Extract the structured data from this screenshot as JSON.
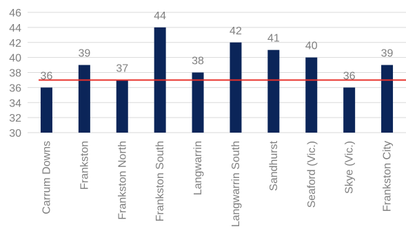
{
  "chart_data": {
    "type": "bar",
    "categories": [
      "Carrum Downs",
      "Frankston",
      "Frankston North",
      "Frankston South",
      "Langwarrin",
      "Langwarrin South",
      "Sandhurst",
      "Seaford (Vic.)",
      "Skye (Vic.)",
      "Frankston City"
    ],
    "values": [
      36,
      39,
      37,
      44,
      38,
      42,
      41,
      40,
      36,
      39
    ],
    "data_labels": [
      "36",
      "39",
      "37",
      "44",
      "38",
      "42",
      "41",
      "40",
      "36",
      "39"
    ],
    "ylim": [
      30,
      46
    ],
    "yticks": [
      30,
      32,
      34,
      36,
      38,
      40,
      42,
      44,
      46
    ],
    "reference_line": 37,
    "grid": "horizontal",
    "colors": {
      "bar": "#0b2559",
      "reference_line": "#e8302a",
      "grid": "#d9d9d9",
      "text": "#7f7f7f"
    }
  }
}
